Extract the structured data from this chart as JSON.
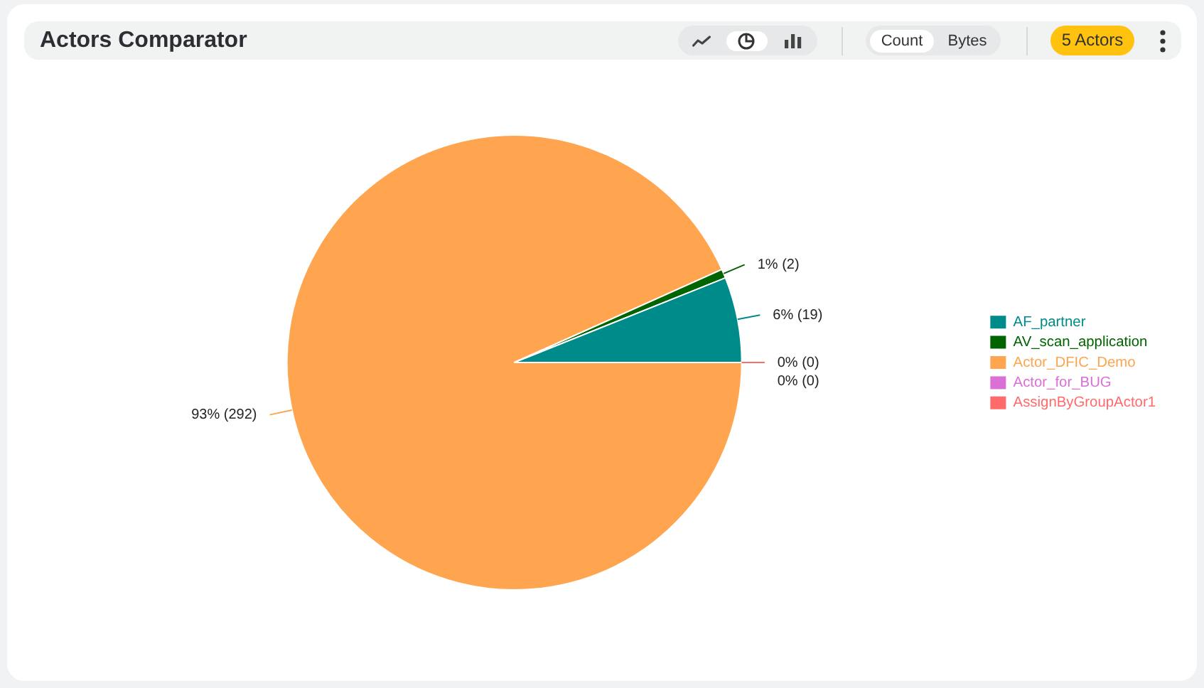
{
  "chart_data": {
    "type": "pie",
    "title": "Actors Comparator",
    "categories": [
      "AF_partner",
      "AV_scan_application",
      "Actor_DFIC_Demo",
      "Actor_for_BUG",
      "AssignByGroupActor1"
    ],
    "values": [
      19,
      2,
      292,
      0,
      0
    ],
    "colors": [
      "#008b8b",
      "#006400",
      "#ffa54f",
      "#da70d6",
      "#ff6a6a"
    ],
    "value_labels": [
      "6% (19)",
      "1% (2)",
      "93% (292)",
      "0% (0)",
      "0% (0)"
    ],
    "legend": "right",
    "annotations": [
      "Count",
      "Bytes",
      "5 Actors"
    ]
  }
}
